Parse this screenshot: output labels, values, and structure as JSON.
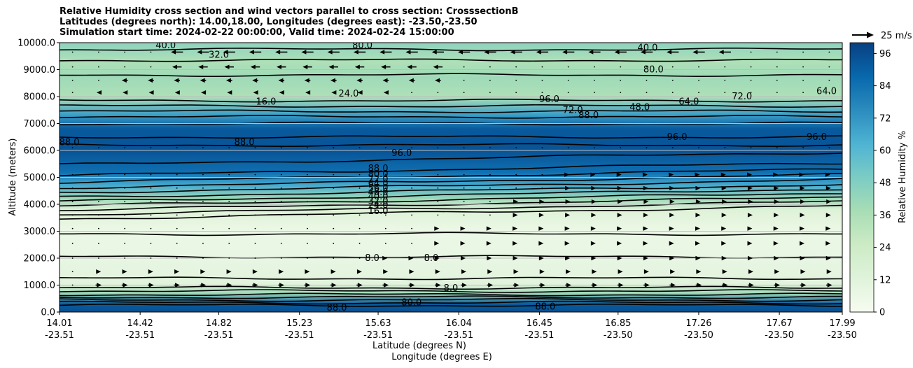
{
  "title_lines": [
    "Relative Humidity cross section and wind vectors parallel to cross section: CrosssectionB",
    "Latitudes (degrees north): 14.00,18.00, Longitudes (degrees east): -23.50,-23.50",
    "Simulation start time: 2024-02-22 00:00:00, Valid time: 2024-02-24 15:00:00"
  ],
  "chart_data": {
    "type": "heatmap",
    "ylabel": "Altitude (meters)",
    "xlabel_top": "Latitude (degrees N)",
    "xlabel_bottom": "Longitude (degrees E)",
    "ylim": [
      0,
      10000
    ],
    "y_ticks": [
      "0.0",
      "1000.0",
      "2000.0",
      "3000.0",
      "4000.0",
      "5000.0",
      "6000.0",
      "7000.0",
      "8000.0",
      "9000.0",
      "10000.0"
    ],
    "x_ticks": [
      {
        "lat": "14.01",
        "lon": "-23.51"
      },
      {
        "lat": "14.42",
        "lon": "-23.51"
      },
      {
        "lat": "14.82",
        "lon": "-23.51"
      },
      {
        "lat": "15.23",
        "lon": "-23.51"
      },
      {
        "lat": "15.63",
        "lon": "-23.51"
      },
      {
        "lat": "16.04",
        "lon": "-23.51"
      },
      {
        "lat": "16.45",
        "lon": "-23.51"
      },
      {
        "lat": "16.85",
        "lon": "-23.50"
      },
      {
        "lat": "17.26",
        "lon": "-23.50"
      },
      {
        "lat": "17.67",
        "lon": "-23.50"
      },
      {
        "lat": "17.99",
        "lon": "-23.50"
      }
    ],
    "x_range_lat": [
      14.01,
      17.99
    ],
    "grid": "horizontal",
    "colorbar": {
      "label": "Relative Humidity %",
      "ticks": [
        "0",
        "12",
        "24",
        "36",
        "48",
        "60",
        "72",
        "84",
        "96"
      ],
      "range": [
        0,
        100
      ],
      "colormap": "GnBu"
    },
    "wind_key": {
      "label": "25 m/s",
      "speed": 25
    },
    "rh_profile": [
      {
        "alt": 0,
        "rh": 95
      },
      {
        "alt": 300,
        "rh": 92
      },
      {
        "alt": 700,
        "rh": 40
      },
      {
        "alt": 1000,
        "rh": 12
      },
      {
        "alt": 2000,
        "rh": 8
      },
      {
        "alt": 3000,
        "rh": 6
      },
      {
        "alt": 3800,
        "rh": 14
      },
      {
        "alt": 4200,
        "rh": 40
      },
      {
        "alt": 4700,
        "rh": 65
      },
      {
        "alt": 5200,
        "rh": 85
      },
      {
        "alt": 6000,
        "rh": 94
      },
      {
        "alt": 6800,
        "rh": 92
      },
      {
        "alt": 7300,
        "rh": 70
      },
      {
        "alt": 8000,
        "rh": 35
      },
      {
        "alt": 8700,
        "rh": 40
      },
      {
        "alt": 9300,
        "rh": 35
      },
      {
        "alt": 10000,
        "rh": 45
      }
    ],
    "contour_labels": [
      "8.0",
      "16.0",
      "24.0",
      "32.0",
      "40.0",
      "48.0",
      "56.0",
      "64.0",
      "72.0",
      "80.0",
      "88.0",
      "96.0"
    ],
    "annotations": [
      {
        "text": "16.0",
        "lat": 15.63,
        "alt": 3740
      },
      {
        "text": "24.0",
        "lat": 15.63,
        "alt": 3960
      },
      {
        "text": "32.0",
        "lat": 15.63,
        "alt": 4120
      },
      {
        "text": "40.0",
        "lat": 15.63,
        "alt": 4280
      },
      {
        "text": "48.0",
        "lat": 15.63,
        "alt": 4440
      },
      {
        "text": "56.0",
        "lat": 15.63,
        "alt": 4600
      },
      {
        "text": "64.0",
        "lat": 15.63,
        "alt": 4760
      },
      {
        "text": "72.0",
        "lat": 15.63,
        "alt": 4920
      },
      {
        "text": "80.0",
        "lat": 15.63,
        "alt": 5120
      },
      {
        "text": "88.0",
        "lat": 15.63,
        "alt": 5330
      },
      {
        "text": "96.0",
        "lat": 15.75,
        "alt": 5900
      },
      {
        "text": "88.0",
        "lat": 16.7,
        "alt": 7300
      },
      {
        "text": "16.0",
        "lat": 15.06,
        "alt": 7800
      },
      {
        "text": "24.0",
        "lat": 15.48,
        "alt": 8100
      },
      {
        "text": "32.0",
        "lat": 14.82,
        "alt": 9550
      },
      {
        "text": "40.0",
        "lat": 14.55,
        "alt": 9900
      },
      {
        "text": "80.0",
        "lat": 15.55,
        "alt": 9900
      },
      {
        "text": "80.0",
        "lat": 17.03,
        "alt": 9000
      },
      {
        "text": "40.0",
        "lat": 17.0,
        "alt": 9800
      },
      {
        "text": "72.0",
        "lat": 17.48,
        "alt": 8000
      },
      {
        "text": "64.0",
        "lat": 17.91,
        "alt": 8200
      },
      {
        "text": "48.0",
        "lat": 16.96,
        "alt": 7600
      },
      {
        "text": "72.0",
        "lat": 16.62,
        "alt": 7500
      },
      {
        "text": "64.0",
        "lat": 17.21,
        "alt": 7800
      },
      {
        "text": "96.0",
        "lat": 17.15,
        "alt": 6500
      },
      {
        "text": "96.0",
        "lat": 17.86,
        "alt": 6500
      },
      {
        "text": "88.0",
        "lat": 14.06,
        "alt": 6300
      },
      {
        "text": "88.0",
        "lat": 14.95,
        "alt": 6300
      },
      {
        "text": "8.0",
        "lat": 15.6,
        "alt": 2000
      },
      {
        "text": "8.0",
        "lat": 15.9,
        "alt": 2000
      },
      {
        "text": "8.0",
        "lat": 16.0,
        "alt": 880
      },
      {
        "text": "88.0",
        "lat": 15.42,
        "alt": 150
      },
      {
        "text": "88.0",
        "lat": 16.48,
        "alt": 200
      },
      {
        "text": "80.0",
        "lat": 15.8,
        "alt": 350
      },
      {
        "text": "96.0",
        "lat": 16.5,
        "alt": 7900
      }
    ],
    "wind_rows": [
      {
        "alt": 9650,
        "u": -18,
        "from_lat": 14.6,
        "to_lat": 17.4
      },
      {
        "alt": 9100,
        "u": -14,
        "from_lat": 14.6,
        "to_lat": 16.0
      },
      {
        "alt": 8600,
        "u": -9,
        "from_lat": 14.3,
        "to_lat": 16.0
      },
      {
        "alt": 8150,
        "u": -6,
        "from_lat": 14.1,
        "to_lat": 15.8
      },
      {
        "alt": 6100,
        "u": 1,
        "from_lat": 14.1,
        "to_lat": 17.9
      },
      {
        "alt": 5100,
        "u": 3,
        "from_lat": 16.5,
        "to_lat": 17.95
      },
      {
        "alt": 4600,
        "u": 5,
        "from_lat": 16.5,
        "to_lat": 17.95
      },
      {
        "alt": 4100,
        "u": 6,
        "from_lat": 16.3,
        "to_lat": 17.95
      },
      {
        "alt": 3600,
        "u": 5,
        "from_lat": 16.3,
        "to_lat": 17.95
      },
      {
        "alt": 3100,
        "u": 4,
        "from_lat": 15.9,
        "to_lat": 17.95
      },
      {
        "alt": 2550,
        "u": 4,
        "from_lat": 15.9,
        "to_lat": 17.95
      },
      {
        "alt": 2000,
        "u": 5,
        "from_lat": 15.6,
        "to_lat": 17.95
      },
      {
        "alt": 1500,
        "u": 7,
        "from_lat": 14.1,
        "to_lat": 17.95
      },
      {
        "alt": 1000,
        "u": 9,
        "from_lat": 14.1,
        "to_lat": 17.95
      }
    ]
  }
}
